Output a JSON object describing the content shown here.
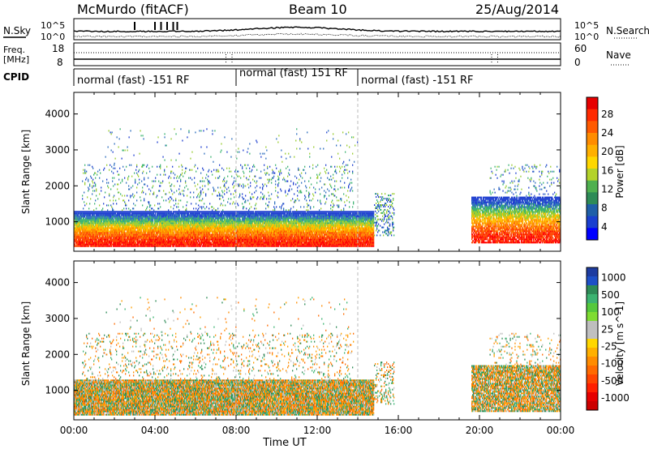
{
  "header": {
    "title": "McMurdo (fitACF)",
    "beam": "Beam 10",
    "date": "25/Aug/2014"
  },
  "time_axis": {
    "label": "Time UT",
    "ticks": [
      "00:00",
      "04:00",
      "08:00",
      "12:00",
      "16:00",
      "20:00",
      "00:00"
    ],
    "range_hours": [
      0,
      24
    ]
  },
  "sky_panel": {
    "left_label": "N.Sky",
    "right_label": "N.Search",
    "left_ticks": [
      "10^5",
      "10^0"
    ],
    "right_ticks": [
      "10^5",
      "10^0"
    ]
  },
  "freq_panel": {
    "left_label_top": "Freq.",
    "left_label_unit": "[MHz]",
    "left_ticks": [
      "18",
      "8"
    ],
    "right_label": "Nave",
    "right_ticks": [
      "60",
      "0"
    ]
  },
  "cpid_panel": {
    "label": "CPID",
    "segments": [
      {
        "start_hour": 0,
        "end_hour": 8,
        "text": "normal (fast) -151 RF"
      },
      {
        "start_hour": 8,
        "end_hour": 14,
        "text": "normal (fast) 151 RF"
      },
      {
        "start_hour": 14,
        "end_hour": 24,
        "text": "normal (fast) -151 RF"
      }
    ]
  },
  "chart_data": [
    {
      "type": "heatmap",
      "id": "power",
      "ylabel": "Slant Range [km]",
      "ylim": [
        180,
        4600
      ],
      "yticks": [
        1000,
        2000,
        3000,
        4000
      ],
      "colorbar_label": "Power [dB]",
      "colorbar_ticks": [
        "28",
        "24",
        "20",
        "16",
        "12",
        "8",
        "4"
      ],
      "colorbar_colors": [
        "#e60000",
        "#ff2a00",
        "#ff5a00",
        "#ff8c00",
        "#ffb000",
        "#ffd700",
        "#b4d32a",
        "#4fb04f",
        "#2e8b57",
        "#1f5fa8",
        "#1a3fcf",
        "#0000ff"
      ],
      "color_scale": [
        "#ff0000",
        "#ff4500",
        "#ff8c00",
        "#ffc000",
        "#9acd32",
        "#3cb371",
        "#2f6fbf",
        "#1f3fd0"
      ]
    },
    {
      "type": "heatmap",
      "id": "velocity",
      "ylabel": "Slant Range [km]",
      "ylim": [
        180,
        4600
      ],
      "yticks": [
        1000,
        2000,
        3000,
        4000
      ],
      "colorbar_label": "Velocity [m s^-1]",
      "colorbar_ticks": [
        "1000",
        "500",
        "100",
        "25",
        "-25",
        "-100",
        "-500",
        "-1000"
      ],
      "colorbar_colors": [
        "#1e3ca0",
        "#1e50c8",
        "#2e8b57",
        "#3cb371",
        "#55c83c",
        "#7fdc32",
        "#bebebe",
        "#c0c0c0",
        "#ffd700",
        "#ffb000",
        "#ff8c00",
        "#ff6a00",
        "#ff4500",
        "#ff2000",
        "#e60000",
        "#cc0000"
      ],
      "color_scale": [
        "#2e8b57",
        "#3cb371",
        "#bebebe",
        "#ffa000",
        "#ff8c00",
        "#ff6a00"
      ]
    }
  ],
  "scatter_coverage": [
    {
      "start_hour": 0.0,
      "end_hour": 14.8,
      "lo_km": 300,
      "hi_km": 1300,
      "density": 0.97
    },
    {
      "start_hour": 0.4,
      "end_hour": 13.8,
      "lo_km": 1300,
      "hi_km": 2600,
      "density": 0.1
    },
    {
      "start_hour": 1.5,
      "end_hour": 14.0,
      "lo_km": 2600,
      "hi_km": 3600,
      "density": 0.02
    },
    {
      "start_hour": 14.8,
      "end_hour": 15.8,
      "lo_km": 600,
      "hi_km": 1800,
      "density": 0.25
    },
    {
      "start_hour": 19.6,
      "end_hour": 24.0,
      "lo_km": 400,
      "hi_km": 1700,
      "density": 0.85
    },
    {
      "start_hour": 20.5,
      "end_hour": 24.0,
      "lo_km": 1700,
      "hi_km": 2600,
      "density": 0.1
    }
  ]
}
